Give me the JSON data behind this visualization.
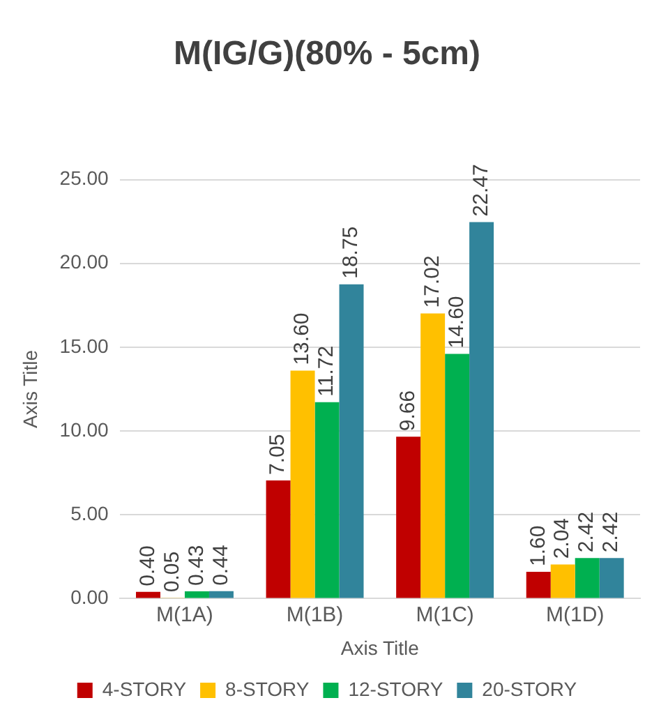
{
  "chart_data": {
    "type": "bar",
    "title": "M(IG/G)(80% - 5cm)",
    "xlabel": "Axis Title",
    "ylabel": "Axis Title",
    "categories": [
      "M(1A)",
      "M(1B)",
      "M(1C)",
      "M(1D)"
    ],
    "series": [
      {
        "name": "4-STORY",
        "color": "#c00000",
        "values": [
          0.4,
          7.05,
          9.66,
          1.6
        ],
        "value_labels": [
          "0.40",
          "7.05",
          "9.66",
          "1.60"
        ]
      },
      {
        "name": "8-STORY",
        "color": "#ffc000",
        "values": [
          0.05,
          13.6,
          17.02,
          2.04
        ],
        "value_labels": [
          "0.05",
          "13.60",
          "17.02",
          "2.04"
        ]
      },
      {
        "name": "12-STORY",
        "color": "#00b050",
        "values": [
          0.43,
          11.72,
          14.6,
          2.42
        ],
        "value_labels": [
          "0.43",
          "11.72",
          "14.60",
          "2.42"
        ]
      },
      {
        "name": "20-STORY",
        "color": "#31849b",
        "values": [
          0.44,
          18.75,
          22.47,
          2.42
        ],
        "value_labels": [
          "0.44",
          "18.75",
          "22.47",
          "2.42"
        ]
      }
    ],
    "ylim": [
      0,
      25
    ],
    "yticks": [
      {
        "value": 0,
        "label": "0.00"
      },
      {
        "value": 5,
        "label": "5.00"
      },
      {
        "value": 10,
        "label": "10.00"
      },
      {
        "value": 15,
        "label": "15.00"
      },
      {
        "value": 20,
        "label": "20.00"
      },
      {
        "value": 25,
        "label": "25.00"
      }
    ],
    "grid": "y",
    "legend": "bottom"
  }
}
